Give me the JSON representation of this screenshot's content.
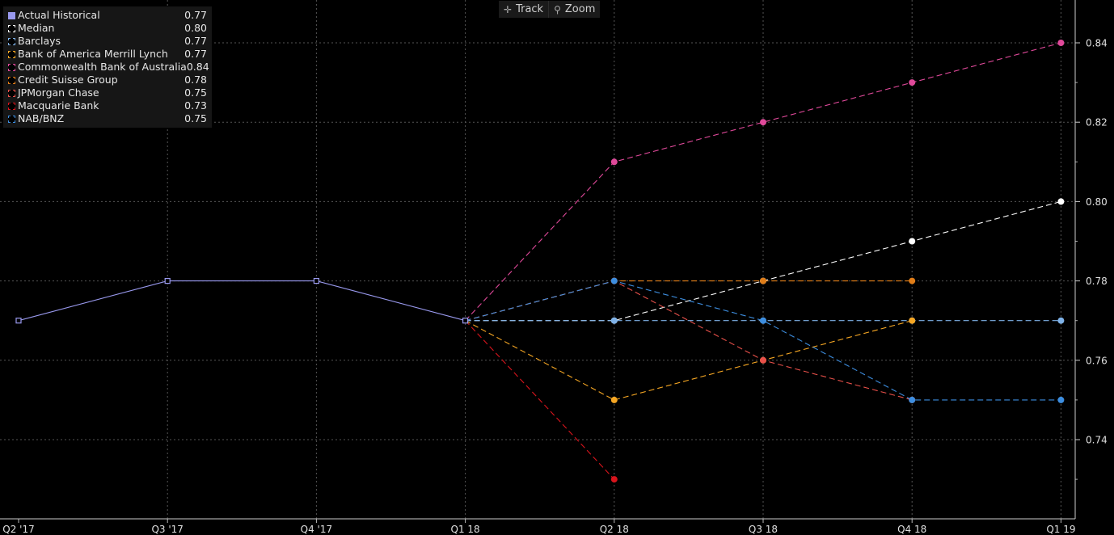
{
  "toolbar": {
    "track_label": "Track",
    "zoom_label": "Zoom",
    "track_icon": "crosshair-icon",
    "zoom_icon": "magnifier-icon"
  },
  "chart_data": {
    "type": "line",
    "categories": [
      "Q2 '17",
      "Q3 '17",
      "Q4 '17",
      "Q1 18",
      "Q2 18",
      "Q3 18",
      "Q4 18",
      "Q1 19"
    ],
    "ylim": [
      0.72,
      0.845
    ],
    "yticks": [
      "0.74",
      "0.76",
      "0.78",
      "0.80",
      "0.82",
      "0.84"
    ],
    "grid": true,
    "legend_position": "top-left",
    "series": [
      {
        "name": "Actual Historical",
        "legend_value": "0.77",
        "color": "#9999ee",
        "dashed": false,
        "marker": "square",
        "values": [
          0.77,
          0.78,
          0.78,
          0.77,
          null,
          null,
          null,
          null
        ]
      },
      {
        "name": "Median",
        "legend_value": "0.80",
        "color": "#ffffff",
        "dashed": true,
        "marker": "circle",
        "values": [
          null,
          null,
          null,
          0.77,
          0.77,
          0.78,
          0.79,
          0.8
        ]
      },
      {
        "name": "Barclays",
        "legend_value": "0.77",
        "color": "#7fb2e8",
        "dashed": true,
        "marker": "circle",
        "values": [
          null,
          null,
          null,
          0.77,
          0.77,
          0.77,
          0.77,
          0.77
        ]
      },
      {
        "name": "Bank of America Merrill Lynch",
        "legend_value": "0.77",
        "color": "#f5a623",
        "dashed": true,
        "marker": "circle",
        "values": [
          null,
          null,
          null,
          0.77,
          0.75,
          0.76,
          0.77,
          null
        ]
      },
      {
        "name": "Commonwealth Bank of Australia",
        "legend_value": "0.84",
        "color": "#e0499a",
        "dashed": true,
        "marker": "circle",
        "values": [
          null,
          null,
          null,
          0.77,
          0.81,
          0.82,
          0.83,
          0.84
        ]
      },
      {
        "name": "Credit Suisse Group",
        "legend_value": "0.78",
        "color": "#e07d18",
        "dashed": true,
        "marker": "circle",
        "values": [
          null,
          null,
          null,
          0.77,
          0.78,
          0.78,
          0.78,
          null
        ]
      },
      {
        "name": "JPMorgan Chase",
        "legend_value": "0.75",
        "color": "#e8504a",
        "dashed": true,
        "marker": "circle",
        "values": [
          null,
          null,
          null,
          0.77,
          0.78,
          0.76,
          0.75,
          null
        ]
      },
      {
        "name": "Macquarie Bank",
        "legend_value": "0.73",
        "color": "#d8141c",
        "dashed": true,
        "marker": "circle",
        "values": [
          null,
          null,
          null,
          0.77,
          0.73,
          null,
          null,
          null
        ]
      },
      {
        "name": "NAB/BNZ",
        "legend_value": "0.75",
        "color": "#3d8ee0",
        "dashed": true,
        "marker": "circle",
        "values": [
          null,
          null,
          null,
          0.77,
          0.78,
          0.77,
          0.75,
          0.75
        ]
      }
    ]
  }
}
